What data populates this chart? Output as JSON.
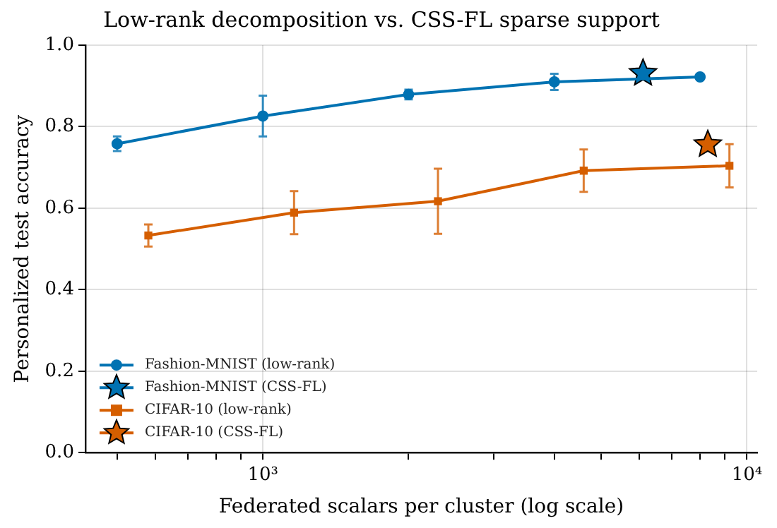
{
  "chart_data": {
    "type": "line",
    "title": "Low-rank decomposition vs. CSS-FL sparse support",
    "xlabel": "Federated scalars per cluster (log scale)",
    "ylabel": "Personalized test accuracy",
    "log": "x",
    "grid": true,
    "legend": "bottom left",
    "xlim": [
      430,
      10500
    ],
    "xticks": [
      {
        "value": 500,
        "label": null
      },
      {
        "value": 600,
        "label": null
      },
      {
        "value": 700,
        "label": null
      },
      {
        "value": 800,
        "label": null
      },
      {
        "value": 900,
        "label": null
      },
      {
        "value": 1000,
        "label": "10³"
      },
      {
        "value": 2000,
        "label": null
      },
      {
        "value": 3000,
        "label": null
      },
      {
        "value": 4000,
        "label": null
      },
      {
        "value": 5000,
        "label": null
      },
      {
        "value": 6000,
        "label": null
      },
      {
        "value": 7000,
        "label": null
      },
      {
        "value": 8000,
        "label": null
      },
      {
        "value": 9000,
        "label": null
      },
      {
        "value": 10000,
        "label": "10⁴"
      }
    ],
    "ylim": [
      0,
      1
    ],
    "yticks": [
      {
        "value": 0,
        "label": "0.0"
      },
      {
        "value": 0.2,
        "label": "0.2"
      },
      {
        "value": 0.4,
        "label": "0.4"
      },
      {
        "value": 0.6,
        "label": "0.6"
      },
      {
        "value": 0.8,
        "label": "0.8"
      },
      {
        "value": 1,
        "label": "1.0"
      }
    ],
    "series": [
      {
        "name": "Fashion-MNIST (low-rank)",
        "type": "line",
        "marker": "circle",
        "color": "#0072b2",
        "x": [
          500,
          1000,
          2000,
          4000,
          8000
        ],
        "values": [
          0.758,
          0.826,
          0.879,
          0.91,
          0.922
        ],
        "errors": [
          0.018,
          0.05,
          0.012,
          0.02,
          null
        ]
      },
      {
        "name": "Fashion-MNIST (CSS-FL)",
        "type": "scatter",
        "marker": "star",
        "color": "#0072b2",
        "x": [
          6100
        ],
        "values": [
          0.931
        ]
      },
      {
        "name": "CIFAR-10 (low-rank)",
        "type": "line",
        "marker": "square",
        "color": "#d55e00",
        "x": [
          580,
          1160,
          2300,
          4600,
          9200
        ],
        "values": [
          0.533,
          0.589,
          0.617,
          0.692,
          0.704
        ],
        "errors": [
          0.027,
          0.053,
          0.08,
          0.052,
          0.053
        ]
      },
      {
        "name": "CIFAR-10 (CSS-FL)",
        "type": "scatter",
        "marker": "star",
        "color": "#d55e00",
        "x": [
          8300
        ],
        "values": [
          0.756
        ]
      }
    ]
  }
}
